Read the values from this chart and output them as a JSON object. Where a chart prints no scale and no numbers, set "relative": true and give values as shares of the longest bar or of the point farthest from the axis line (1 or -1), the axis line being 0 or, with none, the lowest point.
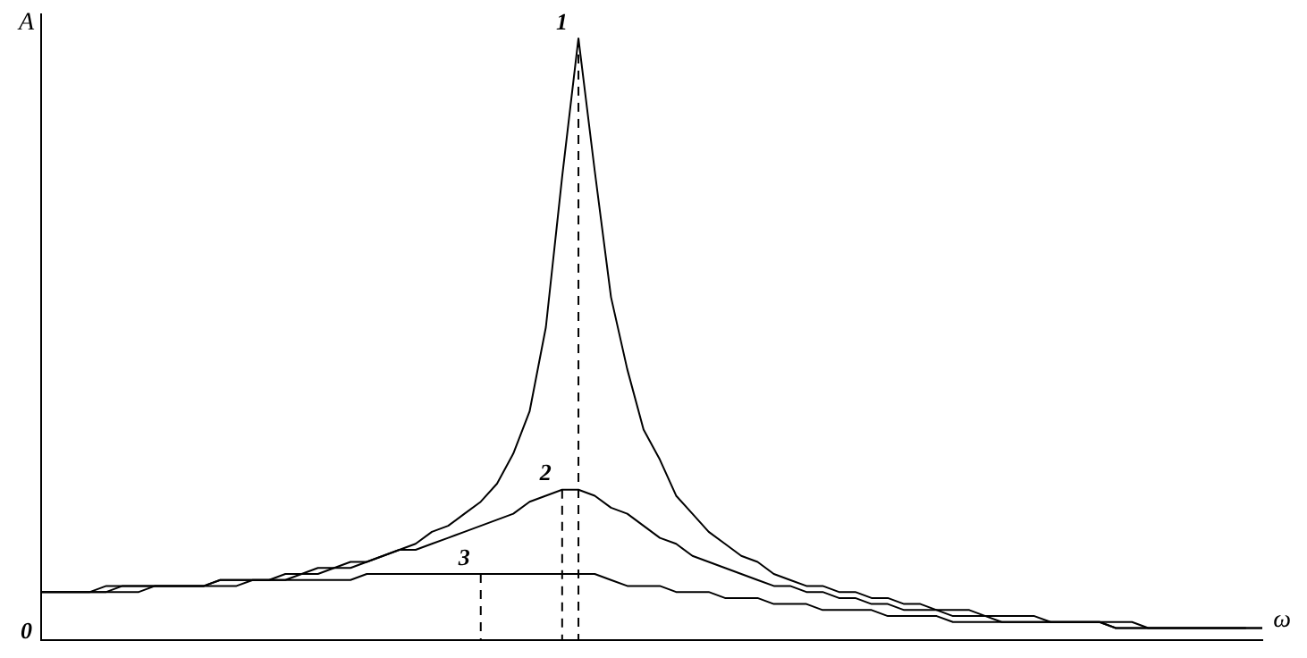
{
  "chart_data": {
    "type": "line",
    "relative": true,
    "xlabel": "ω",
    "ylabel": "A",
    "grid": false,
    "legend": false,
    "marker": "none",
    "annotations": [
      "0"
    ],
    "categories": [
      null,
      null,
      null,
      null,
      null,
      null,
      null,
      null,
      null,
      null,
      null,
      null,
      null,
      null,
      null,
      null,
      null,
      null,
      null,
      null,
      null,
      null,
      null,
      null,
      null,
      null,
      null,
      null,
      null,
      null,
      null,
      null,
      null,
      null,
      null,
      null,
      null,
      null,
      null,
      null,
      null,
      null,
      null,
      null,
      null,
      null,
      null,
      null,
      null,
      null,
      null,
      null,
      null,
      null,
      null,
      null,
      null,
      null,
      null,
      null,
      null,
      null,
      null,
      null,
      null,
      null,
      null,
      null,
      null,
      null,
      null,
      null,
      null,
      null,
      null,
      null
    ],
    "series": [
      {
        "name": "1",
        "color": "#000000",
        "values": [
          0.08,
          0.08,
          0.08,
          0.08,
          0.08,
          0.09,
          0.09,
          0.09,
          0.09,
          0.09,
          0.09,
          0.1,
          0.1,
          0.1,
          0.1,
          0.11,
          0.11,
          0.12,
          0.12,
          0.13,
          0.13,
          0.14,
          0.15,
          0.16,
          0.18,
          0.19,
          0.21,
          0.23,
          0.26,
          0.31,
          0.38,
          0.52,
          0.77,
          1,
          0.78,
          0.57,
          0.45,
          0.35,
          0.3,
          0.24,
          0.21,
          0.18,
          0.16,
          0.14,
          0.13,
          0.11,
          0.1,
          0.09,
          0.09,
          0.08,
          0.08,
          0.07,
          0.07,
          0.06,
          0.06,
          0.05,
          0.05,
          0.05,
          0.04,
          0.04,
          0.04,
          0.04,
          0.03,
          0.03,
          0.03,
          0.03,
          0.03,
          0.03,
          0.02,
          0.02,
          0.02,
          0.02,
          0.02,
          0.02,
          0.02,
          0.02
        ]
      },
      {
        "name": "2",
        "color": "#000000",
        "values": [
          0.08,
          0.08,
          0.08,
          0.08,
          0.09,
          0.09,
          0.09,
          0.09,
          0.09,
          0.09,
          0.09,
          0.1,
          0.1,
          0.1,
          0.1,
          0.1,
          0.11,
          0.11,
          0.12,
          0.12,
          0.13,
          0.14,
          0.15,
          0.15,
          0.16,
          0.17,
          0.18,
          0.19,
          0.2,
          0.21,
          0.23,
          0.24,
          0.25,
          0.25,
          0.24,
          0.22,
          0.21,
          0.19,
          0.17,
          0.16,
          0.14,
          0.13,
          0.12,
          0.11,
          0.1,
          0.09,
          0.09,
          0.08,
          0.08,
          0.07,
          0.07,
          0.06,
          0.06,
          0.05,
          0.05,
          0.05,
          0.04,
          0.04,
          0.04,
          0.03,
          0.03,
          0.03,
          0.03,
          0.03,
          0.03,
          0.03,
          0.02,
          0.02,
          0.02,
          0.02,
          0.02,
          0.02,
          0.02,
          0.02,
          0.02,
          0.02
        ]
      },
      {
        "name": "3",
        "color": "#000000",
        "values": [
          0.08,
          0.08,
          0.08,
          0.08,
          0.08,
          0.08,
          0.08,
          0.09,
          0.09,
          0.09,
          0.09,
          0.09,
          0.09,
          0.1,
          0.1,
          0.1,
          0.1,
          0.1,
          0.1,
          0.1,
          0.11,
          0.11,
          0.11,
          0.11,
          0.11,
          0.11,
          0.11,
          0.11,
          0.11,
          0.11,
          0.11,
          0.11,
          0.11,
          0.11,
          0.11,
          0.1,
          0.09,
          0.09,
          0.09,
          0.08,
          0.08,
          0.08,
          0.07,
          0.07,
          0.07,
          0.06,
          0.06,
          0.06,
          0.05,
          0.05,
          0.05,
          0.05,
          0.04,
          0.04,
          0.04,
          0.04,
          0.03,
          0.03,
          0.03,
          0.03,
          0.03,
          0.03,
          0.03,
          0.03,
          0.03,
          0.03,
          0.02,
          0.02,
          0.02,
          0.02,
          0.02,
          0.02,
          0.02,
          0.02,
          0.02,
          null
        ]
      }
    ]
  }
}
